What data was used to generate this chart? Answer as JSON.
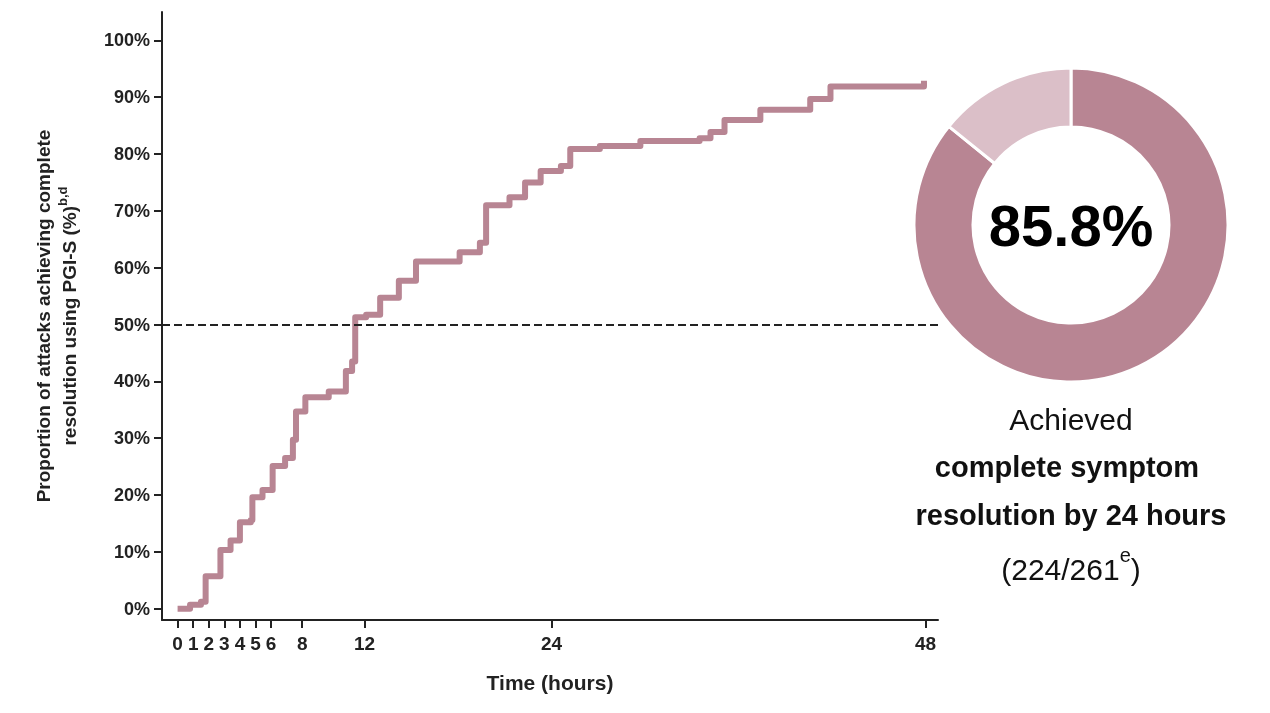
{
  "chart_data": [
    {
      "type": "step",
      "xlabel": "Time (hours)",
      "ylabel": "Proportion of attacks achieving complete resolution using PGI-S (%)$^{b,d}$",
      "x": [
        0,
        0.8,
        1.5,
        1.8,
        2.4,
        2.75,
        3.4,
        4.0,
        4.7,
        4.8,
        5.45,
        6.1,
        6.9,
        7.4,
        7.6,
        8.2,
        9.7,
        10.8,
        11.2,
        11.4,
        12.1,
        13.0,
        14.2,
        15.3,
        17.2,
        18.1,
        19.4,
        19.8,
        21.3,
        22.3,
        23.3,
        24.6,
        25.2,
        27.1,
        29.7,
        33.5,
        34.2,
        35.1,
        37.4,
        40.6,
        41.9,
        47.6,
        47.9
      ],
      "series": [
        {
          "color": "#b88593",
          "values": [
            0,
            0.7,
            1.2,
            5.7,
            5.7,
            10.3,
            12,
            15.2,
            15.6,
            19.6,
            20.9,
            25.1,
            26.5,
            29.7,
            34.7,
            37.2,
            38.2,
            41.8,
            43.5,
            51.3,
            51.7,
            54.7,
            57.7,
            61.1,
            61.1,
            62.7,
            64.4,
            71,
            72.4,
            75,
            77,
            77.9,
            80.9,
            81.4,
            82.3,
            82.8,
            83.9,
            86,
            87.8,
            89.7,
            91.9,
            91.9,
            92.9
          ]
        }
      ],
      "xlim": [
        -1,
        48.8
      ],
      "xticks": [
        0,
        1,
        2,
        3,
        4,
        5,
        6,
        8,
        12,
        24,
        48
      ],
      "ylim": [
        -2,
        105
      ],
      "yticks": [
        {
          "value": 0,
          "label": "0%"
        },
        {
          "value": 10,
          "label": "10%"
        },
        {
          "value": 20,
          "label": "20%"
        },
        {
          "value": 30,
          "label": "30%"
        },
        {
          "value": 40,
          "label": "40%"
        },
        {
          "value": 50,
          "label": "50%"
        },
        {
          "value": 60,
          "label": "60%"
        },
        {
          "value": 70,
          "label": "70%"
        },
        {
          "value": 80,
          "label": "80%"
        },
        {
          "value": 90,
          "label": "90%"
        },
        {
          "value": 100,
          "label": "100%"
        }
      ],
      "ref_lines": [
        {
          "axis": "y",
          "value": 50,
          "line_style": "dashed",
          "color": "#222222"
        }
      ],
      "grid": false,
      "marker": "none",
      "line_style": "solid"
    },
    {
      "type": "donut",
      "categories": [
        null,
        null
      ],
      "values": [
        85.8,
        14.2
      ],
      "colors": [
        "#b88593",
        "#dbbfc8"
      ],
      "value_labels": [
        "85.8%",
        null
      ],
      "annotations": [
        "Achieved",
        "complete symptom resolution by 24 hours",
        "(224/261$^{e}$)"
      ]
    }
  ]
}
